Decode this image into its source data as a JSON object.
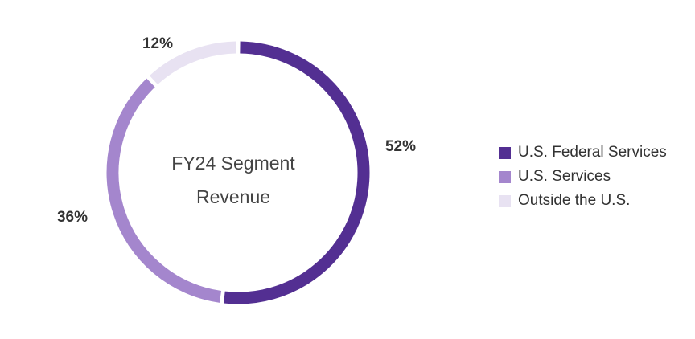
{
  "chart_data": {
    "type": "pie",
    "style": "donut",
    "title": "FY24 Segment Revenue",
    "title_lines": [
      "FY24 Segment",
      "Revenue"
    ],
    "slices": [
      {
        "name": "U.S. Federal Services",
        "value": 52,
        "label": "52%",
        "color": "#532f92"
      },
      {
        "name": "U.S. Services",
        "value": 36,
        "label": "36%",
        "color": "#a486cd"
      },
      {
        "name": "Outside the U.S.",
        "value": 12,
        "label": "12%",
        "color": "#e8e2f2"
      }
    ],
    "legend_position": "right"
  }
}
